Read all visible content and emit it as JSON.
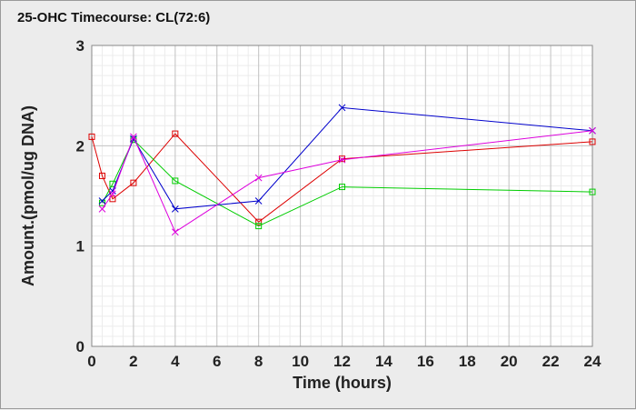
{
  "chart_data": {
    "type": "line",
    "title": "25-OHC Timecourse: CL(72:6)",
    "xlabel": "Time (hours)",
    "ylabel": "Amount.(pmol/ug DNA)",
    "xlim": [
      0,
      24
    ],
    "ylim": [
      0,
      3
    ],
    "xticks": [
      0,
      2,
      4,
      6,
      8,
      10,
      12,
      14,
      16,
      18,
      20,
      22,
      24
    ],
    "yticks": [
      0,
      1,
      2,
      3
    ],
    "grid": true,
    "legend": "none",
    "series": [
      {
        "color": "#dd0000",
        "marker": "square",
        "x": [
          0,
          0.5,
          1,
          2,
          4,
          8,
          12,
          24
        ],
        "y": [
          2.09,
          1.7,
          1.47,
          1.63,
          2.12,
          1.24,
          1.87,
          2.04
        ]
      },
      {
        "color": "#00cc00",
        "marker": "square",
        "x": [
          0.5,
          1,
          2,
          4,
          8,
          12,
          24
        ],
        "y": [
          1.43,
          1.62,
          2.06,
          1.65,
          1.2,
          1.59,
          1.54
        ]
      },
      {
        "color": "#0000cc",
        "marker": "x",
        "x": [
          0.5,
          1,
          2,
          4,
          8,
          12,
          24
        ],
        "y": [
          1.45,
          1.55,
          2.07,
          1.37,
          1.45,
          2.38,
          2.15
        ]
      },
      {
        "color": "#dd00dd",
        "marker": "x",
        "x": [
          0.5,
          1,
          2,
          4,
          8,
          12,
          24
        ],
        "y": [
          1.37,
          1.52,
          2.09,
          1.14,
          1.68,
          1.86,
          2.15
        ]
      }
    ]
  }
}
